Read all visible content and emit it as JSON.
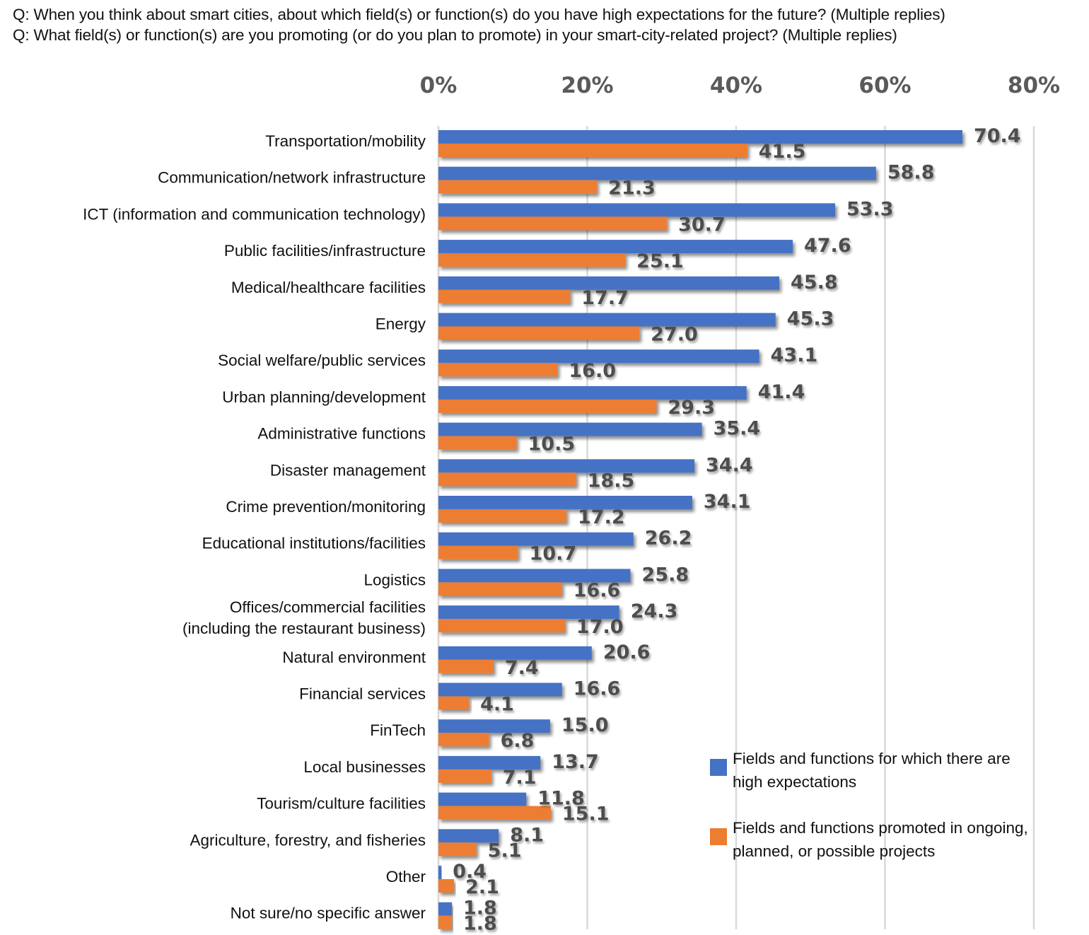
{
  "questions": [
    "Q: When you think about smart cities, about which field(s) or function(s) do you have high expectations for the future? (Multiple replies)",
    "Q: What field(s) or function(s) are you promoting (or do you plan to promote) in your smart-city-related project? (Multiple replies)"
  ],
  "legend": [
    {
      "label": "Fields and functions for which there are high expectations",
      "color": "#4472C4"
    },
    {
      "label": "Fields and functions promoted in ongoing, planned, or possible projects",
      "color": "#ED7D31"
    }
  ],
  "chart_data": {
    "type": "bar",
    "orientation": "horizontal",
    "title": "",
    "xlabel": "",
    "ylabel": "",
    "xlim": [
      0,
      80
    ],
    "x_ticks": [
      "0%",
      "20%",
      "40%",
      "60%",
      "80%"
    ],
    "x_tick_values": [
      0,
      20,
      40,
      60,
      80
    ],
    "axis_position": "top",
    "grid": true,
    "legend_position": "bottom-right",
    "categories": [
      "Transportation/mobility",
      "Communication/network infrastructure",
      "ICT (information and communication technology)",
      "Public facilities/infrastructure",
      "Medical/healthcare facilities",
      "Energy",
      "Social welfare/public services",
      "Urban planning/development",
      "Administrative functions",
      "Disaster management",
      "Crime prevention/monitoring",
      "Educational institutions/facilities",
      "Logistics",
      "Offices/commercial facilities\n(including the restaurant business)",
      "Natural environment",
      "Financial services",
      "FinTech",
      "Local businesses",
      "Tourism/culture facilities",
      "Agriculture, forestry, and fisheries",
      "Other",
      "Not sure/no specific answer"
    ],
    "series": [
      {
        "name": "Fields and functions for which there are high expectations",
        "color": "#4472C4",
        "values": [
          70.4,
          58.8,
          53.3,
          47.6,
          45.8,
          45.3,
          43.1,
          41.4,
          35.4,
          34.4,
          34.1,
          26.2,
          25.8,
          24.3,
          20.6,
          16.6,
          15.0,
          13.7,
          11.8,
          8.1,
          0.4,
          1.8
        ],
        "labels": [
          "70.4",
          "58.8",
          "53.3",
          "47.6",
          "45.8",
          "45.3",
          "43.1",
          "41.4",
          "35.4",
          "34.4",
          "34.1",
          "26.2",
          "25.8",
          "24.3",
          "20.6",
          "16.6",
          "15.0",
          "13.7",
          "11.8",
          "8.1",
          "0.4",
          "1.8"
        ]
      },
      {
        "name": "Fields and functions promoted in ongoing, planned, or possible projects",
        "color": "#ED7D31",
        "values": [
          41.5,
          21.3,
          30.7,
          25.1,
          17.7,
          27.0,
          16.0,
          29.3,
          10.5,
          18.5,
          17.2,
          10.7,
          16.6,
          17.0,
          7.4,
          4.1,
          6.8,
          7.1,
          15.1,
          5.1,
          2.1,
          1.8
        ],
        "labels": [
          "41.5",
          "21.3",
          "30.7",
          "25.1",
          "17.7",
          "27.0",
          "16.0",
          "29.3",
          "10.5",
          "18.5",
          "17.2",
          "10.7",
          "16.6",
          "17.0",
          "7.4",
          "4.1",
          "6.8",
          "7.1",
          "15.1",
          "5.1",
          "2.1",
          "1.8"
        ]
      }
    ]
  }
}
